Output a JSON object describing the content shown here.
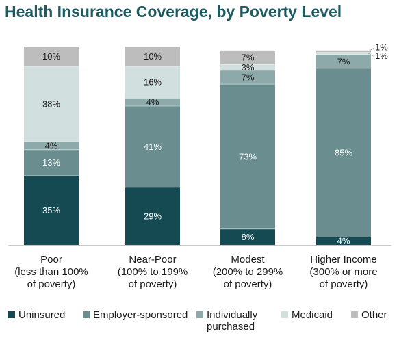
{
  "chart_data": {
    "type": "bar",
    "stacked": true,
    "title": "Health Insurance Coverage, by Poverty Level",
    "categories": [
      [
        "Poor",
        "(less than 100%",
        "of poverty)"
      ],
      [
        "Near-Poor",
        "(100% to 199%",
        "of poverty)"
      ],
      [
        "Modest",
        "(200% to 299%",
        "of poverty)"
      ],
      [
        "Higher Income",
        "(300% or more",
        "of poverty)"
      ]
    ],
    "series": [
      {
        "name": "Uninsured",
        "color": "#154a52",
        "label_color": "#ffffff",
        "values": [
          35,
          29,
          8,
          4
        ],
        "labels": [
          "35%",
          "29%",
          "8%",
          "4%"
        ]
      },
      {
        "name": "Employer-sponsored",
        "color": "#6a8e8f",
        "label_color": "#ffffff",
        "values": [
          13,
          41,
          73,
          85
        ],
        "labels": [
          "13%",
          "41%",
          "73%",
          "85%"
        ]
      },
      {
        "name": "Individually purchased",
        "legend_lines": [
          "Individually",
          "purchased"
        ],
        "color": "#8da9aa",
        "label_color": "#1a1a1a",
        "values": [
          4,
          4,
          7,
          7
        ],
        "labels": [
          "4%",
          "4%",
          "7%",
          "7%"
        ]
      },
      {
        "name": "Medicaid",
        "color": "#d1dfdf",
        "label_color": "#1a1a1a",
        "values": [
          38,
          16,
          3,
          1
        ],
        "labels": [
          "38%",
          "16%",
          "3%",
          "1%"
        ]
      },
      {
        "name": "Other",
        "color": "#bdbdbd",
        "label_color": "#1a1a1a",
        "values": [
          10,
          10,
          7,
          1
        ],
        "labels": [
          "10%",
          "10%",
          "7%",
          "1%"
        ]
      }
    ],
    "ylim": [
      0,
      100
    ],
    "grid": false,
    "legend": "bottom"
  }
}
